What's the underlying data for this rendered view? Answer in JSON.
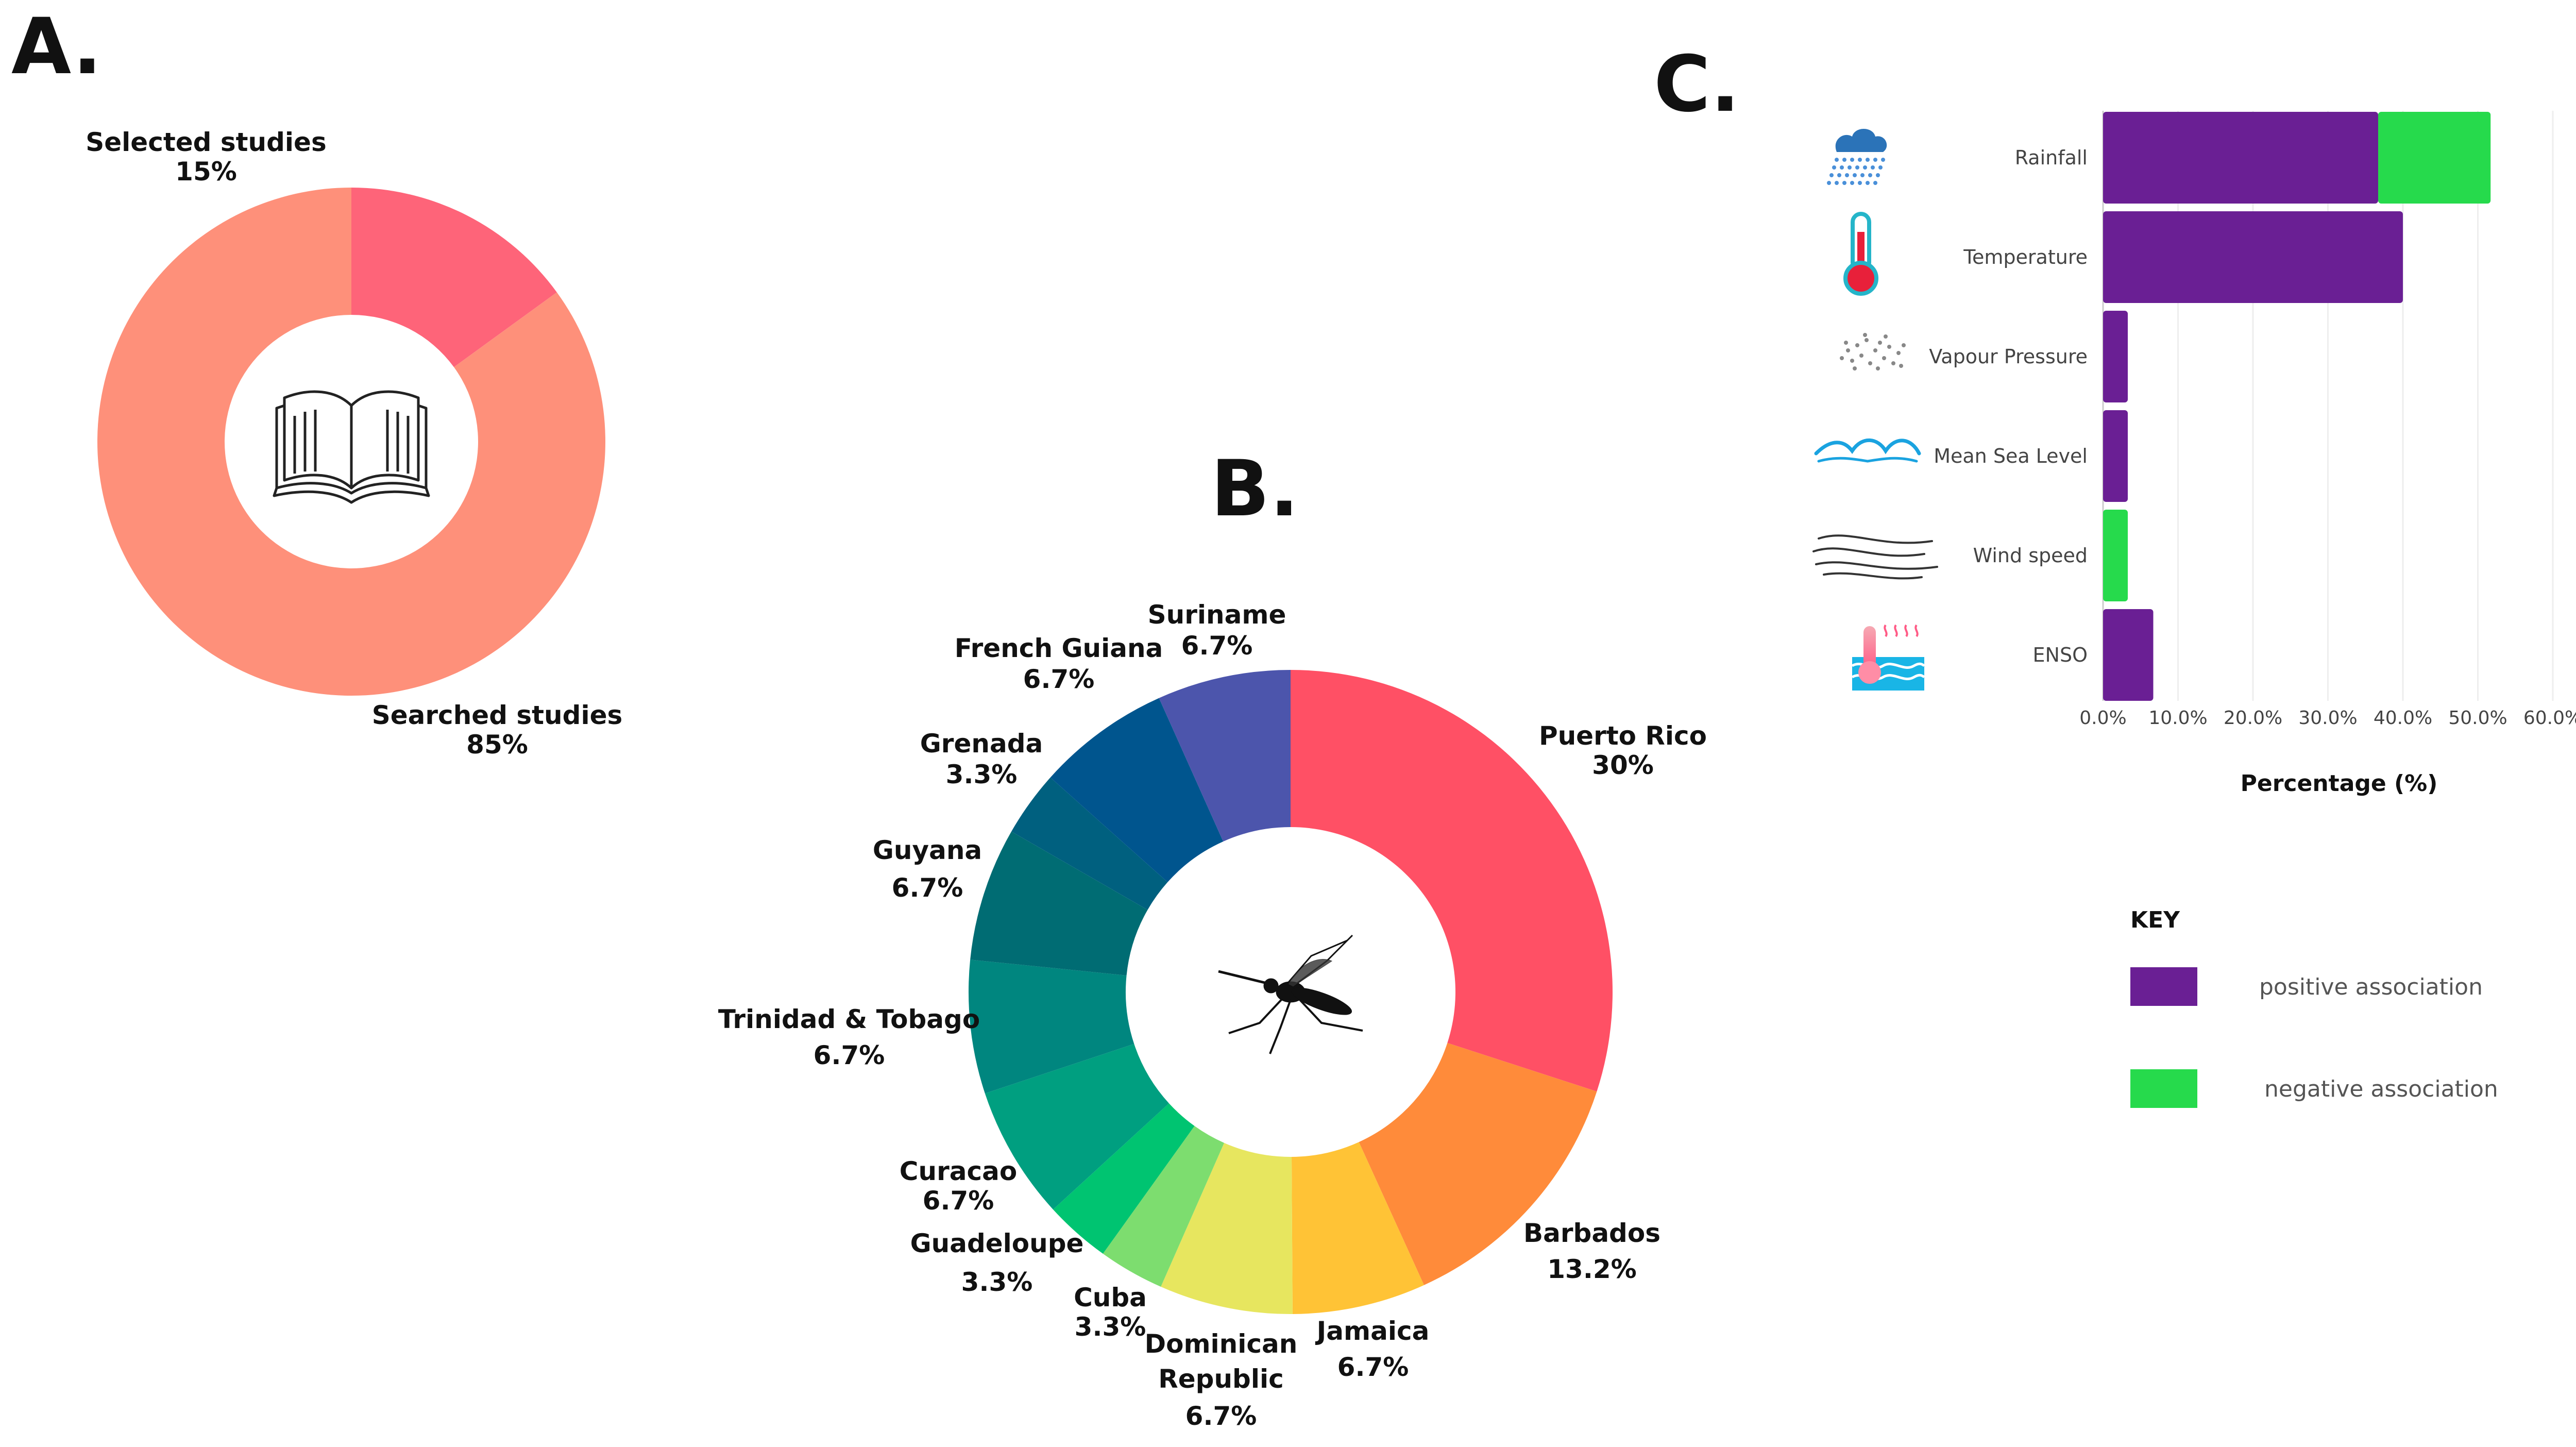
{
  "panels": {
    "a": "A.",
    "b": "B.",
    "c": "C."
  },
  "chart_data": [
    {
      "type": "pie",
      "panel": "A",
      "donut": true,
      "center_icon": "open-book-icon",
      "slices": [
        {
          "label": "Selected studies",
          "value": 15,
          "display": "15%",
          "color": "#fe6479"
        },
        {
          "label": "Searched studies",
          "value": 85,
          "display": "85%",
          "color": "#fe907a"
        }
      ]
    },
    {
      "type": "pie",
      "panel": "B",
      "donut": true,
      "center_icon": "mosquito-icon",
      "slices": [
        {
          "label": "Puerto Rico",
          "value": 30,
          "display": "30%",
          "color": "#ff5065"
        },
        {
          "label": "Barbados",
          "value": 13.2,
          "display": "13.2%",
          "color": "#ff8b3a"
        },
        {
          "label": "Jamaica",
          "value": 6.7,
          "display": "6.7%",
          "color": "#ffc336"
        },
        {
          "label": "Dominican Republic",
          "value": 6.7,
          "display": "6.7%",
          "color": "#e7e65f"
        },
        {
          "label": "Cuba",
          "value": 3.3,
          "display": "3.3%",
          "color": "#7ddd6f"
        },
        {
          "label": "Guadeloupe",
          "value": 3.3,
          "display": "3.3%",
          "color": "#00c471"
        },
        {
          "label": "Curacao",
          "value": 6.7,
          "display": "6.7%",
          "color": "#009f80"
        },
        {
          "label": "Trinidad & Tobago",
          "value": 6.7,
          "display": "6.7%",
          "color": "#00867f"
        },
        {
          "label": "Guyana",
          "value": 6.7,
          "display": "6.7%",
          "color": "#006c73"
        },
        {
          "label": "Grenada",
          "value": 3.3,
          "display": "3.3%",
          "color": "#00607f"
        },
        {
          "label": "French Guiana",
          "value": 6.7,
          "display": "6.7%",
          "color": "#00558e"
        },
        {
          "label": "Suriname",
          "value": 6.7,
          "display": "6.7%",
          "color": "#4c55ac"
        }
      ]
    },
    {
      "type": "bar",
      "panel": "C",
      "orientation": "horizontal",
      "stacked": true,
      "categories": [
        "Rainfall",
        "Temperature",
        "Vapour Pressure",
        "Mean Sea Level",
        "Wind speed",
        "ENSO"
      ],
      "icons": [
        "rain-cloud-icon",
        "thermometer-icon",
        "vapour-icon",
        "sea-wave-icon",
        "wind-icon",
        "enso-icon"
      ],
      "series": [
        {
          "name": "positive association",
          "color": "#6a1f94",
          "values": [
            36.7,
            40.0,
            3.3,
            3.3,
            0.0,
            6.7
          ]
        },
        {
          "name": "negative association",
          "color": "#26da4c",
          "values": [
            15.0,
            0.0,
            0.0,
            0.0,
            3.3,
            0.0
          ]
        }
      ],
      "xlim": [
        0,
        60
      ],
      "xticks": [
        "0.0%",
        "10.0%",
        "20.0%",
        "30.0%",
        "40.0%",
        "50.0%",
        "60.0%"
      ],
      "xlabel": "Percentage (%)",
      "grid": true,
      "legend": {
        "title": "KEY",
        "placement": "bottom-right"
      }
    }
  ]
}
